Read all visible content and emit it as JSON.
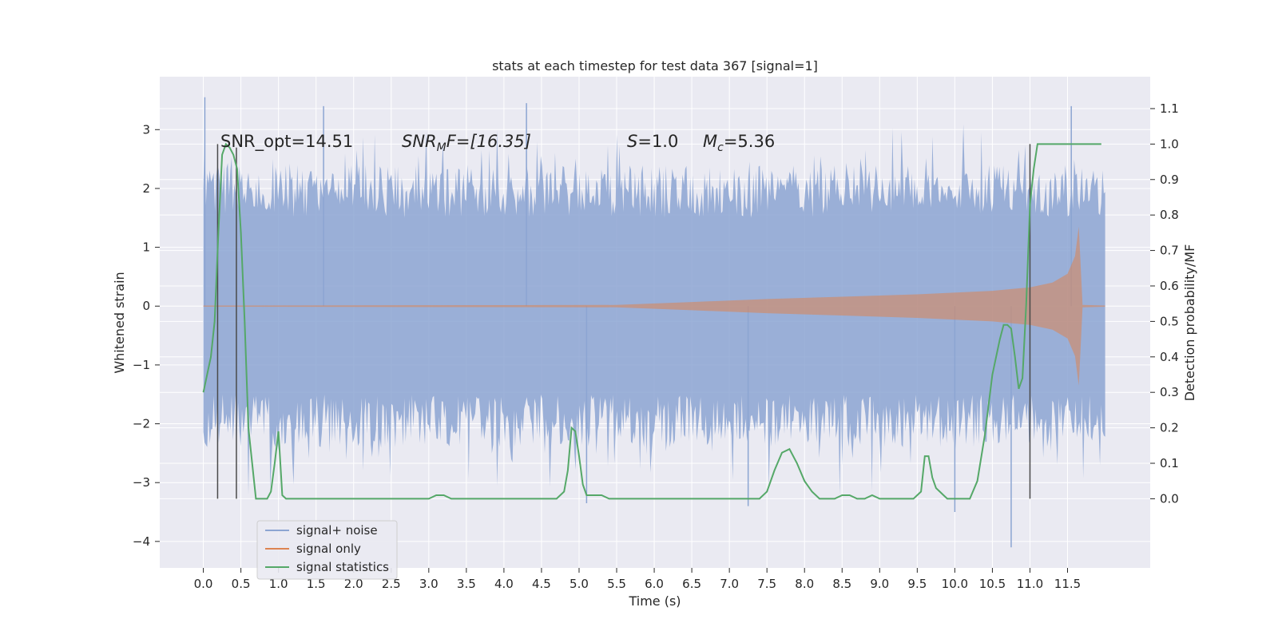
{
  "chart_data": {
    "type": "line",
    "title": "stats at each timestep for test data 367 [signal=1]",
    "xlabel": "Time (s)",
    "ylabel": "Whitened strain",
    "y2label": "Detection probability/MF",
    "xlim": [
      -0.58,
      12.6
    ],
    "ylim": [
      -4.45,
      3.9
    ],
    "y2lim": [
      -0.195,
      1.19
    ],
    "x_ticks": [
      "0.0",
      "0.5",
      "1.0",
      "1.5",
      "2.0",
      "2.5",
      "3.0",
      "3.5",
      "4.0",
      "4.5",
      "5.0",
      "5.5",
      "6.0",
      "6.5",
      "7.0",
      "7.5",
      "8.0",
      "8.5",
      "9.0",
      "9.5",
      "10.0",
      "10.5",
      "11.0",
      "11.5"
    ],
    "y_ticks": [
      "3",
      "2",
      "1",
      "0",
      "−1",
      "−2",
      "−3",
      "−4"
    ],
    "y2_ticks": [
      "1.1",
      "1.0",
      "0.9",
      "0.8",
      "0.7",
      "0.6",
      "0.5",
      "0.4",
      "0.3",
      "0.2",
      "0.1",
      "0.0"
    ],
    "grid": true,
    "legend_position": "lower-left",
    "annotations": {
      "snr_opt": "SNR_opt=14.51",
      "snr_mf_base": "SNR",
      "snr_mf_sub": "M",
      "snr_mf_rest": "F=[16.35]",
      "s_var": "S",
      "s_val": "=1.0",
      "mc_var": "M",
      "mc_sub": "c",
      "mc_val": "=5.36"
    },
    "series": [
      {
        "name": "signal+ noise",
        "color": "#8ca5d2",
        "axis": "left",
        "x_range": [
          0.0,
          12.0
        ],
        "typical_envelope": [
          -1.5,
          1.5
        ],
        "peaks": [
          [
            0.02,
            3.55
          ],
          [
            1.6,
            3.4
          ],
          [
            4.3,
            3.45
          ],
          [
            11.55,
            3.4
          ],
          [
            10.75,
            -4.1
          ],
          [
            10.0,
            -3.5
          ],
          [
            7.25,
            -3.4
          ],
          [
            5.1,
            -3.35
          ]
        ]
      },
      {
        "name": "signal only",
        "color": "#dd8452",
        "axis": "left",
        "x": [
          0.0,
          5.5,
          6.5,
          7.5,
          8.5,
          9.5,
          10.5,
          11.0,
          11.3,
          11.5,
          11.6,
          11.65,
          11.7,
          12.0
        ],
        "amplitude": [
          0.01,
          0.02,
          0.07,
          0.12,
          0.16,
          0.2,
          0.26,
          0.32,
          0.4,
          0.55,
          0.85,
          1.35,
          0.02,
          0.01
        ]
      },
      {
        "name": "signal statistics",
        "color": "#55a868",
        "axis": "right",
        "x": [
          0.0,
          0.05,
          0.1,
          0.15,
          0.2,
          0.25,
          0.3,
          0.35,
          0.4,
          0.45,
          0.5,
          0.55,
          0.6,
          0.65,
          0.7,
          0.75,
          0.8,
          0.85,
          0.9,
          0.95,
          1.0,
          1.05,
          1.1,
          1.2,
          1.3,
          1.5,
          2.0,
          2.5,
          2.8,
          3.0,
          3.1,
          3.2,
          3.3,
          3.5,
          4.0,
          4.2,
          4.5,
          4.7,
          4.8,
          4.85,
          4.9,
          4.95,
          5.0,
          5.05,
          5.1,
          5.2,
          5.3,
          5.4,
          5.5,
          5.6,
          5.7,
          6.0,
          6.5,
          7.0,
          7.2,
          7.4,
          7.5,
          7.6,
          7.7,
          7.8,
          7.9,
          8.0,
          8.1,
          8.2,
          8.3,
          8.4,
          8.5,
          8.6,
          8.7,
          8.8,
          8.9,
          9.0,
          9.2,
          9.45,
          9.55,
          9.6,
          9.65,
          9.7,
          9.75,
          9.8,
          9.85,
          9.9,
          10.0,
          10.1,
          10.2,
          10.3,
          10.4,
          10.5,
          10.6,
          10.65,
          10.7,
          10.75,
          10.8,
          10.85,
          10.9,
          10.95,
          11.0,
          11.05,
          11.1,
          11.2,
          11.5,
          11.95
        ],
        "values": [
          0.3,
          0.35,
          0.4,
          0.5,
          0.75,
          0.97,
          1.0,
          0.99,
          0.97,
          0.93,
          0.75,
          0.5,
          0.2,
          0.1,
          0.0,
          0.0,
          0.0,
          0.0,
          0.02,
          0.1,
          0.19,
          0.01,
          0.0,
          0.0,
          0.0,
          0.0,
          0.0,
          0.0,
          0.0,
          0.0,
          0.01,
          0.01,
          0.0,
          0.0,
          0.0,
          0.0,
          0.0,
          0.0,
          0.02,
          0.08,
          0.2,
          0.19,
          0.12,
          0.04,
          0.01,
          0.01,
          0.01,
          0.0,
          0.0,
          0.0,
          0.0,
          0.0,
          0.0,
          0.0,
          0.0,
          0.0,
          0.02,
          0.08,
          0.13,
          0.14,
          0.1,
          0.05,
          0.02,
          0.0,
          0.0,
          0.0,
          0.01,
          0.01,
          0.0,
          0.0,
          0.01,
          0.0,
          0.0,
          0.0,
          0.02,
          0.12,
          0.12,
          0.06,
          0.03,
          0.02,
          0.01,
          0.0,
          0.0,
          0.0,
          0.0,
          0.05,
          0.18,
          0.35,
          0.45,
          0.49,
          0.49,
          0.48,
          0.4,
          0.31,
          0.34,
          0.55,
          0.83,
          0.93,
          1.0,
          1.0,
          1.0,
          1.0
        ]
      }
    ],
    "vertical_markers": [
      {
        "x": 0.19,
        "y_top": 1.0
      },
      {
        "x": 0.44,
        "y_top": 0.99
      },
      {
        "x": 11.0,
        "y_top": 1.0
      }
    ]
  },
  "colors": {
    "plot_bg": "#eaeaf2",
    "grid": "#ffffff",
    "marker": "#4a4a4a"
  }
}
